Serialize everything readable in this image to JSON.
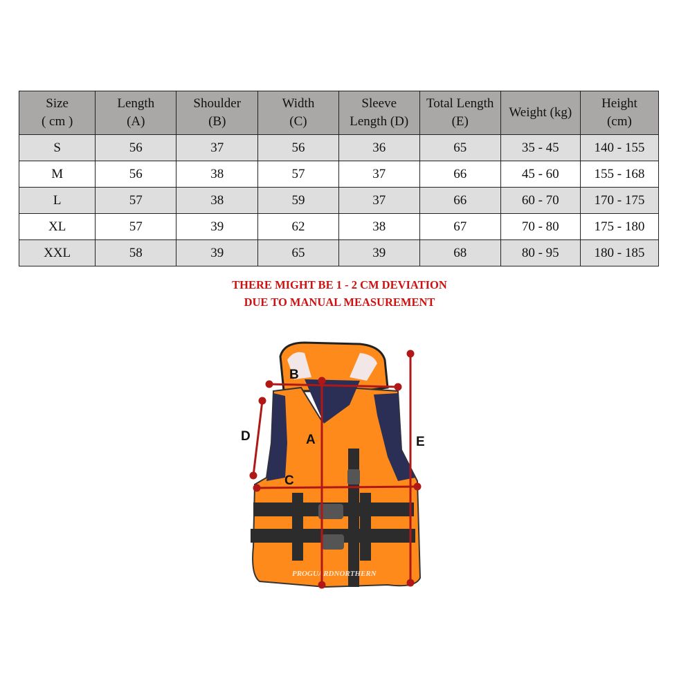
{
  "size_table": {
    "headers": [
      [
        "Size",
        "( cm )"
      ],
      [
        "Length",
        "(A)"
      ],
      [
        "Shoulder",
        "(B)"
      ],
      [
        "Width",
        "(C)"
      ],
      [
        "Sleeve",
        "Length (D)"
      ],
      [
        "Total Length",
        "(E)"
      ],
      [
        "Weight (kg)",
        ""
      ],
      [
        "Height",
        "(cm)"
      ]
    ],
    "rows": [
      [
        "S",
        "56",
        "37",
        "56",
        "36",
        "65",
        "35 - 45",
        "140 - 155"
      ],
      [
        "M",
        "56",
        "38",
        "57",
        "37",
        "66",
        "45 - 60",
        "155 - 168"
      ],
      [
        "L",
        "57",
        "38",
        "59",
        "37",
        "66",
        "60 - 70",
        "170 - 175"
      ],
      [
        "XL",
        "57",
        "39",
        "62",
        "38",
        "67",
        "70 - 80",
        "175 - 180"
      ],
      [
        "XXL",
        "58",
        "39",
        "65",
        "39",
        "68",
        "80 - 95",
        "180 - 185"
      ]
    ]
  },
  "note": {
    "line1": "THERE MIGHT BE 1 - 2 CM DEVIATION",
    "line2": "DUE TO MANUAL MEASUREMENT",
    "color": "#d01010"
  },
  "diagram": {
    "labels": {
      "A": "A",
      "B": "B",
      "C": "C",
      "D": "D",
      "E": "E"
    },
    "watermark": "PROGUARDNORTHERN",
    "vest_color": "#ff8a1c",
    "line_color": "#b01818"
  }
}
